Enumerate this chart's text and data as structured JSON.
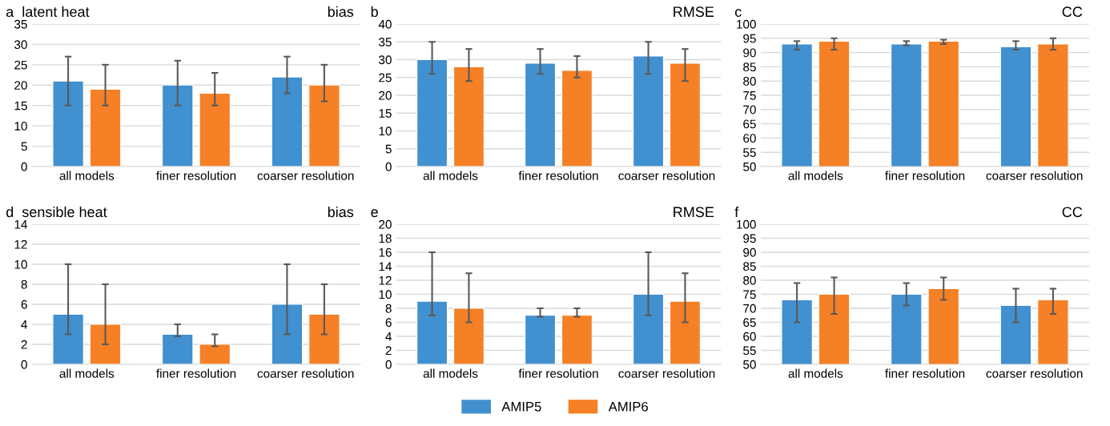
{
  "chart_data": [
    {
      "type": "bar",
      "title": "a  latent heat",
      "annotations": [
        "bias"
      ],
      "categories": [
        "all models",
        "finer resolution",
        "coarser resolution"
      ],
      "ylim": [
        0,
        35
      ],
      "yticks": [
        0,
        5,
        10,
        15,
        20,
        25,
        30,
        35
      ],
      "grid": "y",
      "legend": "bottom",
      "series": [
        {
          "name": "AMIP5",
          "color": "#4190d0",
          "values": [
            21,
            20,
            22
          ],
          "errors": [
            [
              15,
              27
            ],
            [
              15,
              26
            ],
            [
              18,
              27
            ]
          ]
        },
        {
          "name": "AMIP6",
          "color": "#f58025",
          "values": [
            19,
            18,
            20
          ],
          "errors": [
            [
              15,
              25
            ],
            [
              15,
              23
            ],
            [
              16,
              25
            ]
          ]
        }
      ]
    },
    {
      "type": "bar",
      "title": "b",
      "annotations": [
        "RMSE"
      ],
      "categories": [
        "all models",
        "finer resolution",
        "coarser resolution"
      ],
      "ylim": [
        0,
        40
      ],
      "yticks": [
        0,
        5,
        10,
        15,
        20,
        25,
        30,
        35,
        40
      ],
      "grid": "y",
      "series": [
        {
          "color": "#4190d0",
          "values": [
            30,
            29,
            31
          ],
          "errors": [
            [
              26,
              35
            ],
            [
              26,
              33
            ],
            [
              26,
              35
            ]
          ]
        },
        {
          "color": "#f58025",
          "values": [
            28,
            27,
            29
          ],
          "errors": [
            [
              24,
              33
            ],
            [
              25,
              31
            ],
            [
              24,
              33
            ]
          ]
        }
      ]
    },
    {
      "type": "bar",
      "title": "c",
      "annotations": [
        "CC"
      ],
      "categories": [
        "all models",
        "finer resolution",
        "coarser resolution"
      ],
      "ylim": [
        50,
        100
      ],
      "yticks": [
        50,
        55,
        60,
        65,
        70,
        75,
        80,
        85,
        90,
        95,
        100
      ],
      "grid": "y",
      "series": [
        {
          "color": "#4190d0",
          "values": [
            93,
            93,
            92
          ],
          "errors": [
            [
              91,
              94
            ],
            [
              92.5,
              94
            ],
            [
              91,
              94
            ]
          ]
        },
        {
          "color": "#f58025",
          "values": [
            94,
            94,
            93
          ],
          "errors": [
            [
              91,
              95
            ],
            [
              93,
              94.5
            ],
            [
              91,
              95
            ]
          ]
        }
      ]
    },
    {
      "type": "bar",
      "title": "d  sensible heat",
      "annotations": [
        "bias"
      ],
      "categories": [
        "all models",
        "finer resolution",
        "coarser resolution"
      ],
      "ylim": [
        0,
        14
      ],
      "yticks": [
        0,
        2,
        4,
        6,
        8,
        10,
        12,
        14
      ],
      "grid": "y",
      "series": [
        {
          "color": "#4190d0",
          "values": [
            5,
            3,
            6
          ],
          "errors": [
            [
              3,
              10
            ],
            [
              2.8,
              4
            ],
            [
              3,
              10
            ]
          ]
        },
        {
          "color": "#f58025",
          "values": [
            4,
            2,
            5
          ],
          "errors": [
            [
              2,
              8
            ],
            [
              1.8,
              3
            ],
            [
              3,
              8
            ]
          ]
        }
      ]
    },
    {
      "type": "bar",
      "title": "e",
      "annotations": [
        "RMSE"
      ],
      "categories": [
        "all models",
        "finer resolution",
        "coarser resolution"
      ],
      "ylim": [
        0,
        20
      ],
      "yticks": [
        0,
        2,
        4,
        6,
        8,
        10,
        12,
        14,
        16,
        18,
        20
      ],
      "grid": "y",
      "series": [
        {
          "color": "#4190d0",
          "values": [
            9,
            7,
            10
          ],
          "errors": [
            [
              7,
              16
            ],
            [
              6.8,
              8
            ],
            [
              7,
              16
            ]
          ]
        },
        {
          "color": "#f58025",
          "values": [
            8,
            7,
            9
          ],
          "errors": [
            [
              6,
              13
            ],
            [
              6.8,
              8
            ],
            [
              6,
              13
            ]
          ]
        }
      ]
    },
    {
      "type": "bar",
      "title": "f",
      "annotations": [
        "CC"
      ],
      "categories": [
        "all models",
        "finer resolution",
        "coarser resolution"
      ],
      "ylim": [
        50,
        100
      ],
      "yticks": [
        50,
        55,
        60,
        65,
        70,
        75,
        80,
        85,
        90,
        95,
        100
      ],
      "grid": "y",
      "series": [
        {
          "color": "#4190d0",
          "values": [
            73,
            75,
            71
          ],
          "errors": [
            [
              65,
              79
            ],
            [
              71,
              79
            ],
            [
              65,
              77
            ]
          ]
        },
        {
          "color": "#f58025",
          "values": [
            75,
            77,
            73
          ],
          "errors": [
            [
              68,
              81
            ],
            [
              73,
              81
            ],
            [
              68,
              77
            ]
          ]
        }
      ]
    }
  ]
}
